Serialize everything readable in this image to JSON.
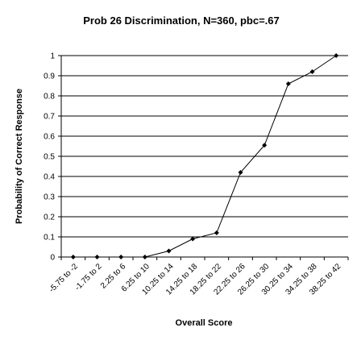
{
  "chart_data": {
    "type": "line",
    "title": "Prob 26 Discrimination, N=360, pbc=.67",
    "xlabel": "Overall Score",
    "ylabel": "Probability of Correct Response",
    "categories": [
      "-5.75 to -2",
      "-1.75 to 2",
      "2.25 to 6",
      "6.25 to 10",
      "10.25 to 14",
      "14.25 to 18",
      "18.25 to 22",
      "22.25 to 26",
      "26.25 to 30",
      "30.25 to 34",
      "34.25 to 38",
      "38.25 to 42"
    ],
    "values": [
      0,
      0,
      0,
      0,
      0.03,
      0.09,
      0.12,
      0.42,
      0.555,
      0.86,
      0.92,
      1.0
    ],
    "ylim": [
      0,
      1
    ],
    "yticks": [
      "0",
      "0.1",
      "0.2",
      "0.3",
      "0.4",
      "0.5",
      "0.6",
      "0.7",
      "0.8",
      "0.9",
      "1"
    ],
    "grid": true,
    "legend": "none",
    "marker": "diamond",
    "color": "#000000"
  }
}
